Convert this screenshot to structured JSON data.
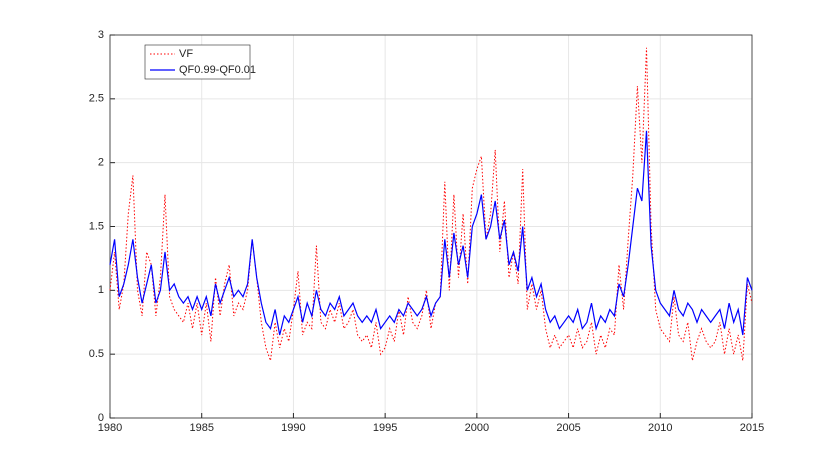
{
  "chart_data": {
    "type": "line",
    "x": [
      1980,
      1980.25,
      1980.5,
      1980.75,
      1981,
      1981.25,
      1981.5,
      1981.75,
      1982,
      1982.25,
      1982.5,
      1982.75,
      1983,
      1983.25,
      1983.5,
      1983.75,
      1984,
      1984.25,
      1984.5,
      1984.75,
      1985,
      1985.25,
      1985.5,
      1985.75,
      1986,
      1986.25,
      1986.5,
      1986.75,
      1987,
      1987.25,
      1987.5,
      1987.75,
      1988,
      1988.25,
      1988.5,
      1988.75,
      1989,
      1989.25,
      1989.5,
      1989.75,
      1990,
      1990.25,
      1990.5,
      1990.75,
      1991,
      1991.25,
      1991.5,
      1991.75,
      1992,
      1992.25,
      1992.5,
      1992.75,
      1993,
      1993.25,
      1993.5,
      1993.75,
      1994,
      1994.25,
      1994.5,
      1994.75,
      1995,
      1995.25,
      1995.5,
      1995.75,
      1996,
      1996.25,
      1996.5,
      1996.75,
      1997,
      1997.25,
      1997.5,
      1997.75,
      1998,
      1998.25,
      1998.5,
      1998.75,
      1999,
      1999.25,
      1999.5,
      1999.75,
      2000,
      2000.25,
      2000.5,
      2000.75,
      2001,
      2001.25,
      2001.5,
      2001.75,
      2002,
      2002.25,
      2002.5,
      2002.75,
      2003,
      2003.25,
      2003.5,
      2003.75,
      2004,
      2004.25,
      2004.5,
      2004.75,
      2005,
      2005.25,
      2005.5,
      2005.75,
      2006,
      2006.25,
      2006.5,
      2006.75,
      2007,
      2007.25,
      2007.5,
      2007.75,
      2008,
      2008.25,
      2008.5,
      2008.75,
      2009,
      2009.25,
      2009.5,
      2009.75,
      2010,
      2010.25,
      2010.5,
      2010.75,
      2011,
      2011.25,
      2011.5,
      2011.75,
      2012,
      2012.25,
      2012.5,
      2012.75,
      2013,
      2013.25,
      2013.5,
      2013.75,
      2014,
      2014.25,
      2014.5,
      2014.75,
      2015
    ],
    "series": [
      {
        "name": "VF",
        "color": "#ff0000",
        "dash": "dotted",
        "values": [
          1.0,
          1.3,
          0.85,
          1.05,
          1.6,
          1.9,
          1.0,
          0.8,
          1.3,
          1.2,
          0.8,
          1.1,
          1.75,
          0.95,
          0.85,
          0.8,
          0.75,
          0.9,
          0.7,
          0.9,
          0.65,
          0.9,
          0.6,
          1.1,
          0.8,
          1.05,
          1.2,
          0.8,
          0.9,
          0.85,
          1.0,
          1.4,
          1.1,
          0.75,
          0.55,
          0.45,
          0.75,
          0.55,
          0.7,
          0.6,
          0.85,
          1.15,
          0.65,
          0.75,
          0.7,
          1.35,
          0.75,
          0.7,
          0.85,
          0.75,
          0.9,
          0.7,
          0.75,
          0.85,
          0.65,
          0.6,
          0.65,
          0.55,
          0.75,
          0.5,
          0.55,
          0.7,
          0.6,
          0.85,
          0.65,
          0.95,
          0.75,
          0.7,
          0.8,
          1.0,
          0.7,
          0.9,
          0.95,
          1.85,
          1.0,
          1.75,
          1.1,
          1.6,
          1.05,
          1.8,
          1.95,
          2.05,
          1.4,
          1.6,
          2.1,
          1.3,
          1.7,
          1.1,
          1.3,
          1.05,
          1.95,
          0.85,
          1.05,
          0.85,
          1.0,
          0.7,
          0.55,
          0.65,
          0.55,
          0.6,
          0.65,
          0.55,
          0.7,
          0.55,
          0.6,
          0.75,
          0.5,
          0.65,
          0.55,
          0.7,
          0.65,
          1.2,
          0.85,
          1.4,
          1.9,
          2.6,
          2.0,
          2.9,
          1.5,
          0.85,
          0.7,
          0.65,
          0.6,
          0.95,
          0.65,
          0.6,
          0.75,
          0.45,
          0.6,
          0.7,
          0.6,
          0.55,
          0.6,
          0.75,
          0.5,
          0.7,
          0.5,
          0.65,
          0.45,
          1.05,
          0.9
        ]
      },
      {
        "name": "QF0.99-QF0.01",
        "color": "#0000ff",
        "dash": "solid",
        "values": [
          1.2,
          1.4,
          0.95,
          1.05,
          1.2,
          1.4,
          1.1,
          0.9,
          1.05,
          1.2,
          0.9,
          1.0,
          1.3,
          1.0,
          1.05,
          0.95,
          0.9,
          0.95,
          0.85,
          0.95,
          0.85,
          0.95,
          0.8,
          1.05,
          0.9,
          1.0,
          1.1,
          0.95,
          1.0,
          0.95,
          1.05,
          1.4,
          1.1,
          0.9,
          0.75,
          0.7,
          0.85,
          0.65,
          0.8,
          0.75,
          0.85,
          0.95,
          0.75,
          0.9,
          0.8,
          1.0,
          0.85,
          0.8,
          0.9,
          0.85,
          0.95,
          0.8,
          0.85,
          0.9,
          0.8,
          0.75,
          0.8,
          0.75,
          0.85,
          0.7,
          0.75,
          0.8,
          0.75,
          0.85,
          0.8,
          0.9,
          0.85,
          0.8,
          0.85,
          0.95,
          0.8,
          0.9,
          0.95,
          1.4,
          1.1,
          1.45,
          1.2,
          1.35,
          1.1,
          1.5,
          1.6,
          1.75,
          1.4,
          1.5,
          1.7,
          1.4,
          1.55,
          1.2,
          1.3,
          1.15,
          1.5,
          1.0,
          1.1,
          0.95,
          1.05,
          0.85,
          0.75,
          0.8,
          0.7,
          0.75,
          0.8,
          0.75,
          0.85,
          0.7,
          0.75,
          0.9,
          0.7,
          0.8,
          0.75,
          0.85,
          0.8,
          1.05,
          0.95,
          1.2,
          1.5,
          1.8,
          1.7,
          2.25,
          1.35,
          1.0,
          0.9,
          0.85,
          0.8,
          1.0,
          0.85,
          0.8,
          0.9,
          0.85,
          0.75,
          0.85,
          0.8,
          0.75,
          0.8,
          0.85,
          0.7,
          0.9,
          0.75,
          0.85,
          0.65,
          1.1,
          1.0
        ]
      }
    ],
    "xlim": [
      1980,
      2015
    ],
    "xticks": [
      1980,
      1985,
      1990,
      1995,
      2000,
      2005,
      2010,
      2015
    ],
    "ylim": [
      0,
      3
    ],
    "yticks": [
      0,
      0.5,
      1,
      1.5,
      2,
      2.5,
      3
    ],
    "grid": true,
    "legend": "upper-left"
  }
}
